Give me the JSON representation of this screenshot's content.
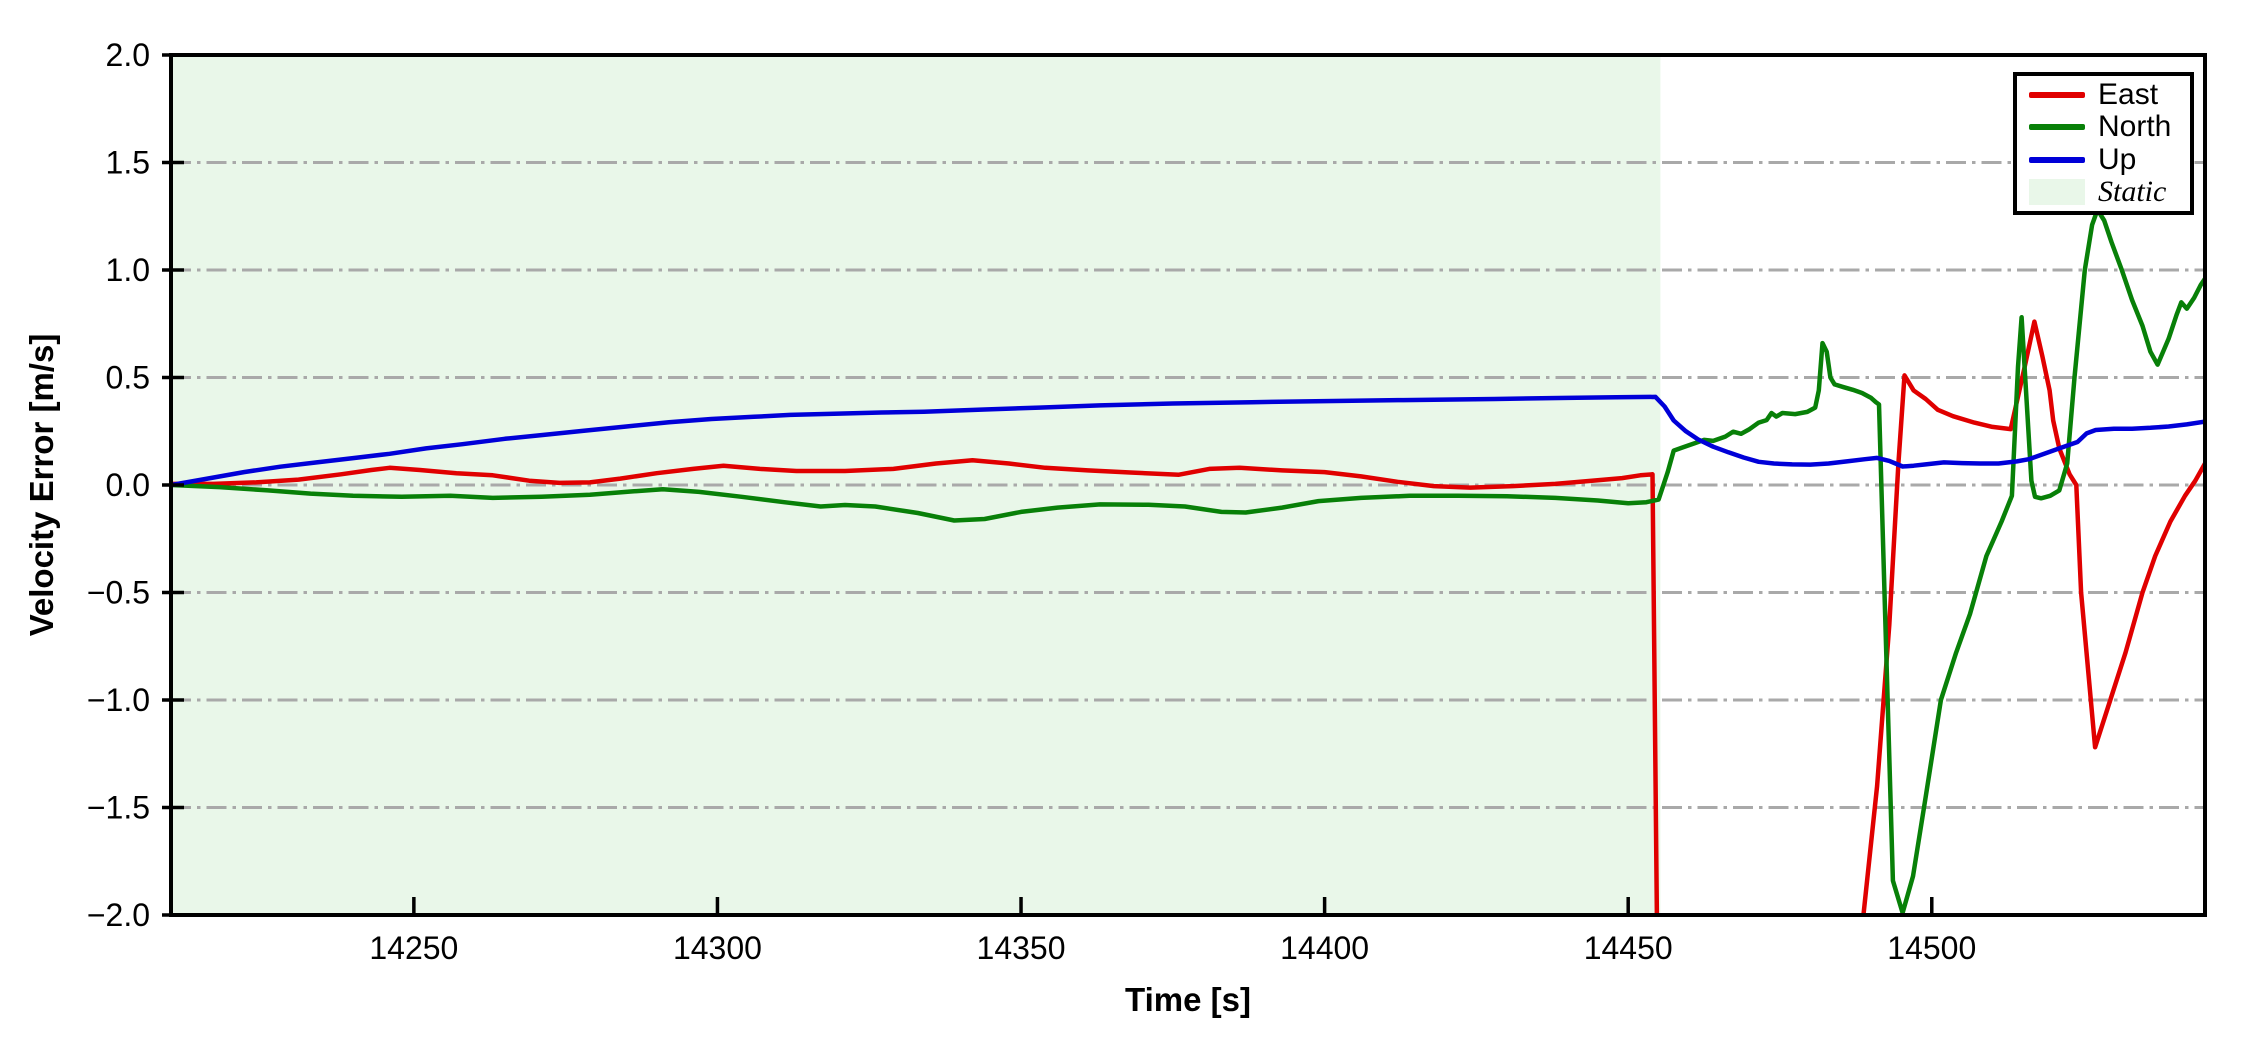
{
  "chart_data": {
    "type": "line",
    "title": "",
    "xlabel": "Time [s]",
    "ylabel": "Velocity Error [m/s]",
    "xlim": [
      14210,
      14545
    ],
    "ylim": [
      -2.0,
      2.0
    ],
    "x_ticks": [
      14250,
      14300,
      14350,
      14400,
      14450,
      14500
    ],
    "x_tick_labels": [
      "14250",
      "14300",
      "14350",
      "14400",
      "14450",
      "14500"
    ],
    "y_ticks": [
      2.0,
      1.5,
      1.0,
      0.5,
      0.0,
      -0.5,
      -1.0,
      -1.5,
      -2.0
    ],
    "y_tick_labels": [
      "2.0",
      "1.5",
      "1.0",
      "0.5",
      "0.0",
      "−0.5",
      "−1.0",
      "−1.5",
      "−2.0"
    ],
    "grid": {
      "axis": "y",
      "style": "dash-dot",
      "color": "#a9a9a9",
      "values": [
        1.5,
        1.0,
        0.5,
        0.0,
        -0.5,
        -1.0,
        -1.5
      ]
    },
    "static_region": {
      "label": "Static",
      "x_start": 14210,
      "x_end": 14455.3,
      "color": "#e9f7e9"
    },
    "legend": {
      "position": "upper right",
      "entries": [
        "East",
        "North",
        "Up",
        "Static"
      ]
    },
    "series": [
      {
        "name": "East",
        "color": "#e00000",
        "points": [
          [
            14210,
            0.005
          ],
          [
            14217,
            0.005
          ],
          [
            14224,
            0.012
          ],
          [
            14231,
            0.025
          ],
          [
            14238,
            0.05
          ],
          [
            14243,
            0.07
          ],
          [
            14246,
            0.08
          ],
          [
            14251,
            0.07
          ],
          [
            14257,
            0.055
          ],
          [
            14263,
            0.045
          ],
          [
            14269,
            0.02
          ],
          [
            14274,
            0.01
          ],
          [
            14279,
            0.012
          ],
          [
            14284,
            0.03
          ],
          [
            14290,
            0.055
          ],
          [
            14296,
            0.075
          ],
          [
            14301,
            0.09
          ],
          [
            14307,
            0.075
          ],
          [
            14313,
            0.065
          ],
          [
            14321,
            0.065
          ],
          [
            14329,
            0.075
          ],
          [
            14336,
            0.1
          ],
          [
            14342,
            0.115
          ],
          [
            14348,
            0.1
          ],
          [
            14354,
            0.08
          ],
          [
            14361,
            0.068
          ],
          [
            14368,
            0.058
          ],
          [
            14376,
            0.048
          ],
          [
            14381,
            0.075
          ],
          [
            14386,
            0.08
          ],
          [
            14393,
            0.068
          ],
          [
            14400,
            0.06
          ],
          [
            14406,
            0.04
          ],
          [
            14412,
            0.015
          ],
          [
            14418,
            -0.005
          ],
          [
            14424,
            -0.012
          ],
          [
            14431,
            -0.005
          ],
          [
            14438,
            0.005
          ],
          [
            14444,
            0.02
          ],
          [
            14449,
            0.032
          ],
          [
            14452,
            0.045
          ],
          [
            14454,
            0.05
          ],
          [
            14454.8,
            -2.2
          ],
          [
            14488,
            -2.2
          ],
          [
            14491,
            -1.4
          ],
          [
            14493,
            -0.65
          ],
          [
            14494.5,
            0.1
          ],
          [
            14495.5,
            0.51
          ],
          [
            14497,
            0.44
          ],
          [
            14499,
            0.4
          ],
          [
            14501,
            0.35
          ],
          [
            14503.5,
            0.32
          ],
          [
            14507,
            0.29
          ],
          [
            14510,
            0.27
          ],
          [
            14513,
            0.26
          ],
          [
            14515.3,
            0.55
          ],
          [
            14516.9,
            0.76
          ],
          [
            14518.2,
            0.6
          ],
          [
            14519.4,
            0.44
          ],
          [
            14520,
            0.3
          ],
          [
            14521,
            0.17
          ],
          [
            14522.7,
            0.05
          ],
          [
            14523.8,
            0.0
          ],
          [
            14524.6,
            -0.5
          ],
          [
            14526.9,
            -1.22
          ],
          [
            14529.4,
            -1.0
          ],
          [
            14531.9,
            -0.78
          ],
          [
            14534.7,
            -0.5
          ],
          [
            14536.8,
            -0.33
          ],
          [
            14539.3,
            -0.17
          ],
          [
            14541.7,
            -0.05
          ],
          [
            14543.4,
            0.02
          ],
          [
            14545,
            0.1
          ]
        ]
      },
      {
        "name": "North",
        "color": "#088008",
        "points": [
          [
            14210,
            0.0
          ],
          [
            14218,
            -0.01
          ],
          [
            14226,
            -0.025
          ],
          [
            14233,
            -0.04
          ],
          [
            14240,
            -0.05
          ],
          [
            14248,
            -0.055
          ],
          [
            14256,
            -0.05
          ],
          [
            14263,
            -0.06
          ],
          [
            14271,
            -0.055
          ],
          [
            14279,
            -0.045
          ],
          [
            14286,
            -0.03
          ],
          [
            14291,
            -0.02
          ],
          [
            14297,
            -0.032
          ],
          [
            14304,
            -0.055
          ],
          [
            14311,
            -0.08
          ],
          [
            14317,
            -0.1
          ],
          [
            14321,
            -0.093
          ],
          [
            14326,
            -0.1
          ],
          [
            14333,
            -0.13
          ],
          [
            14339,
            -0.165
          ],
          [
            14344,
            -0.158
          ],
          [
            14350,
            -0.125
          ],
          [
            14356,
            -0.105
          ],
          [
            14363,
            -0.09
          ],
          [
            14371,
            -0.092
          ],
          [
            14377,
            -0.1
          ],
          [
            14383,
            -0.125
          ],
          [
            14387,
            -0.128
          ],
          [
            14393,
            -0.105
          ],
          [
            14399,
            -0.075
          ],
          [
            14406,
            -0.06
          ],
          [
            14414,
            -0.05
          ],
          [
            14422,
            -0.05
          ],
          [
            14430,
            -0.052
          ],
          [
            14438,
            -0.06
          ],
          [
            14445,
            -0.072
          ],
          [
            14450,
            -0.085
          ],
          [
            14453,
            -0.08
          ],
          [
            14455,
            -0.068
          ],
          [
            14456.5,
            0.06
          ],
          [
            14457.5,
            0.16
          ],
          [
            14459,
            0.175
          ],
          [
            14461,
            0.195
          ],
          [
            14462.5,
            0.21
          ],
          [
            14464,
            0.205
          ],
          [
            14466,
            0.225
          ],
          [
            14467.3,
            0.248
          ],
          [
            14468.6,
            0.238
          ],
          [
            14470,
            0.26
          ],
          [
            14471.5,
            0.29
          ],
          [
            14472.8,
            0.302
          ],
          [
            14473.6,
            0.335
          ],
          [
            14474.4,
            0.318
          ],
          [
            14475.4,
            0.335
          ],
          [
            14477.5,
            0.33
          ],
          [
            14479.5,
            0.34
          ],
          [
            14480.8,
            0.36
          ],
          [
            14481.4,
            0.44
          ],
          [
            14482,
            0.66
          ],
          [
            14482.7,
            0.62
          ],
          [
            14483.3,
            0.5
          ],
          [
            14484,
            0.468
          ],
          [
            14485.5,
            0.455
          ],
          [
            14487,
            0.443
          ],
          [
            14488.5,
            0.428
          ],
          [
            14490,
            0.405
          ],
          [
            14490.8,
            0.385
          ],
          [
            14491.3,
            0.375
          ],
          [
            14493.6,
            -1.84
          ],
          [
            14495.2,
            -1.99
          ],
          [
            14496.9,
            -1.82
          ],
          [
            14499,
            -1.45
          ],
          [
            14501.5,
            -1.0
          ],
          [
            14504,
            -0.78
          ],
          [
            14506.3,
            -0.6
          ],
          [
            14509,
            -0.33
          ],
          [
            14511.5,
            -0.17
          ],
          [
            14513.2,
            -0.05
          ],
          [
            14514.2,
            0.55
          ],
          [
            14514.8,
            0.78
          ],
          [
            14515.6,
            0.4
          ],
          [
            14516.4,
            0.02
          ],
          [
            14517,
            -0.055
          ],
          [
            14518,
            -0.062
          ],
          [
            14519.5,
            -0.05
          ],
          [
            14521,
            -0.025
          ],
          [
            14522.3,
            0.1
          ],
          [
            14523.5,
            0.5
          ],
          [
            14525.2,
            1.0
          ],
          [
            14526.4,
            1.21
          ],
          [
            14527.3,
            1.28
          ],
          [
            14528.4,
            1.23
          ],
          [
            14529.6,
            1.13
          ],
          [
            14531.3,
            1.0
          ],
          [
            14533,
            0.86
          ],
          [
            14534.7,
            0.74
          ],
          [
            14536,
            0.62
          ],
          [
            14537.2,
            0.56
          ],
          [
            14539,
            0.68
          ],
          [
            14540.3,
            0.79
          ],
          [
            14541.1,
            0.85
          ],
          [
            14542,
            0.82
          ],
          [
            14543.2,
            0.87
          ],
          [
            14544.3,
            0.93
          ],
          [
            14545,
            0.96
          ]
        ]
      },
      {
        "name": "Up",
        "color": "#0000d8",
        "points": [
          [
            14210,
            0.0
          ],
          [
            14216,
            0.03
          ],
          [
            14222,
            0.06
          ],
          [
            14228,
            0.085
          ],
          [
            14234,
            0.105
          ],
          [
            14240,
            0.125
          ],
          [
            14246,
            0.145
          ],
          [
            14252,
            0.17
          ],
          [
            14258,
            0.19
          ],
          [
            14265,
            0.215
          ],
          [
            14271,
            0.232
          ],
          [
            14278,
            0.252
          ],
          [
            14285,
            0.272
          ],
          [
            14292,
            0.292
          ],
          [
            14299,
            0.307
          ],
          [
            14306,
            0.317
          ],
          [
            14312,
            0.326
          ],
          [
            14320,
            0.332
          ],
          [
            14327,
            0.337
          ],
          [
            14334,
            0.341
          ],
          [
            14344,
            0.351
          ],
          [
            14353,
            0.36
          ],
          [
            14363,
            0.37
          ],
          [
            14375,
            0.379
          ],
          [
            14388,
            0.385
          ],
          [
            14400,
            0.39
          ],
          [
            14413,
            0.395
          ],
          [
            14428,
            0.4
          ],
          [
            14440,
            0.405
          ],
          [
            14448,
            0.408
          ],
          [
            14454.5,
            0.41
          ],
          [
            14456,
            0.365
          ],
          [
            14457.5,
            0.3
          ],
          [
            14459.5,
            0.25
          ],
          [
            14461.5,
            0.212
          ],
          [
            14464,
            0.178
          ],
          [
            14466.5,
            0.152
          ],
          [
            14469,
            0.128
          ],
          [
            14471.5,
            0.108
          ],
          [
            14474,
            0.1
          ],
          [
            14477,
            0.096
          ],
          [
            14480,
            0.095
          ],
          [
            14483,
            0.1
          ],
          [
            14486,
            0.11
          ],
          [
            14489,
            0.12
          ],
          [
            14491,
            0.126
          ],
          [
            14493,
            0.112
          ],
          [
            14495.2,
            0.086
          ],
          [
            14497,
            0.09
          ],
          [
            14499,
            0.096
          ],
          [
            14502,
            0.105
          ],
          [
            14505,
            0.102
          ],
          [
            14508,
            0.1
          ],
          [
            14511,
            0.1
          ],
          [
            14514,
            0.11
          ],
          [
            14516,
            0.12
          ],
          [
            14518,
            0.14
          ],
          [
            14521,
            0.17
          ],
          [
            14524,
            0.2
          ],
          [
            14525.5,
            0.24
          ],
          [
            14527,
            0.256
          ],
          [
            14530,
            0.262
          ],
          [
            14533,
            0.262
          ],
          [
            14536,
            0.266
          ],
          [
            14539,
            0.272
          ],
          [
            14542,
            0.282
          ],
          [
            14545,
            0.295
          ]
        ]
      }
    ]
  }
}
